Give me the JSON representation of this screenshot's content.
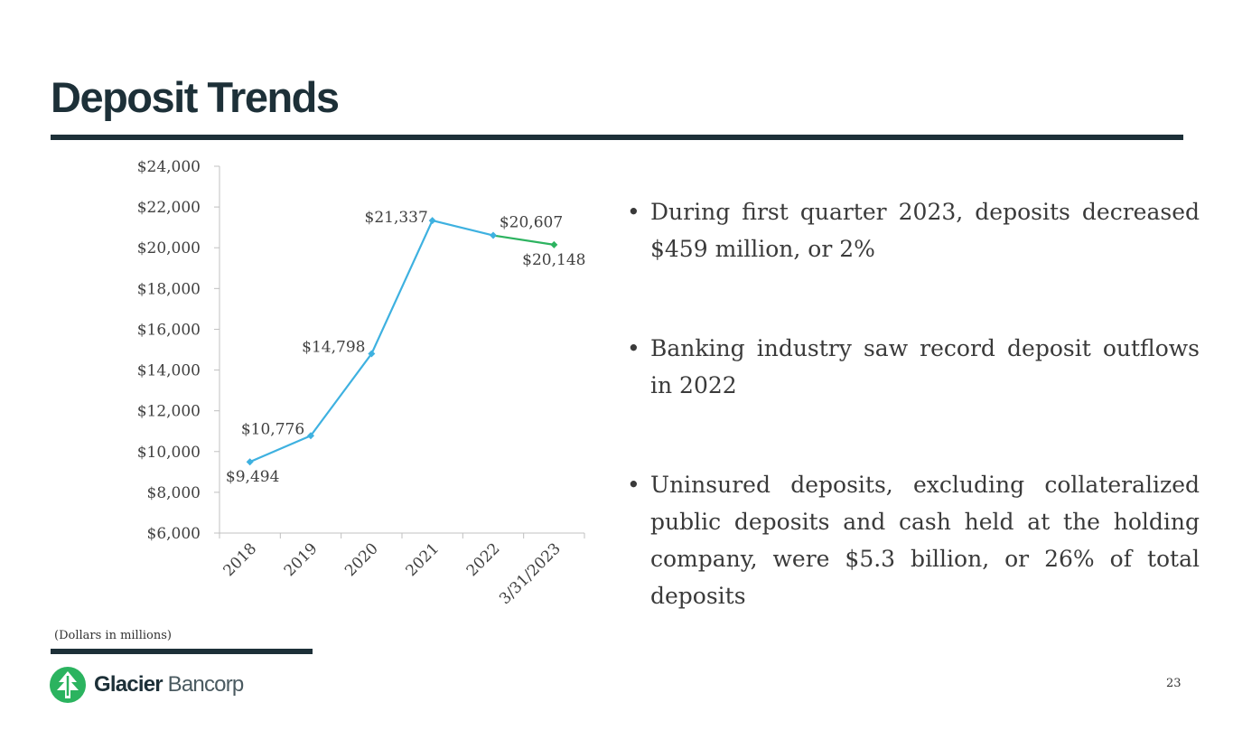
{
  "title": "Deposit Trends",
  "chart_data": {
    "type": "line",
    "categories": [
      "2018",
      "2019",
      "2020",
      "2021",
      "2022",
      "3/31/2023"
    ],
    "values": [
      9494,
      10776,
      14798,
      21337,
      20607,
      20148
    ],
    "value_labels": [
      "$9,494",
      "$10,776",
      "$14,798",
      "$21,337",
      "$20,607",
      "$20,148"
    ],
    "yticks": [
      "$6,000",
      "$8,000",
      "$10,000",
      "$12,000",
      "$14,000",
      "$16,000",
      "$18,000",
      "$20,000",
      "$22,000",
      "$24,000"
    ],
    "ylim": [
      6000,
      24000
    ],
    "series_colors": [
      "#3eb1e0",
      "#2db360"
    ],
    "title": "",
    "xlabel": "",
    "ylabel": ""
  },
  "bullets": [
    "During first quarter 2023, deposits decreased $459 million, or 2%",
    "Banking industry saw record deposit outflows in 2022",
    "Uninsured deposits, excluding collateralized public deposits and cash held at the holding company, were $5.3 billion, or 26% of total deposits"
  ],
  "footnote": "(Dollars in millions)",
  "logo": {
    "bold": "Glacier",
    "regular": "Bancorp"
  },
  "page_number": "23"
}
